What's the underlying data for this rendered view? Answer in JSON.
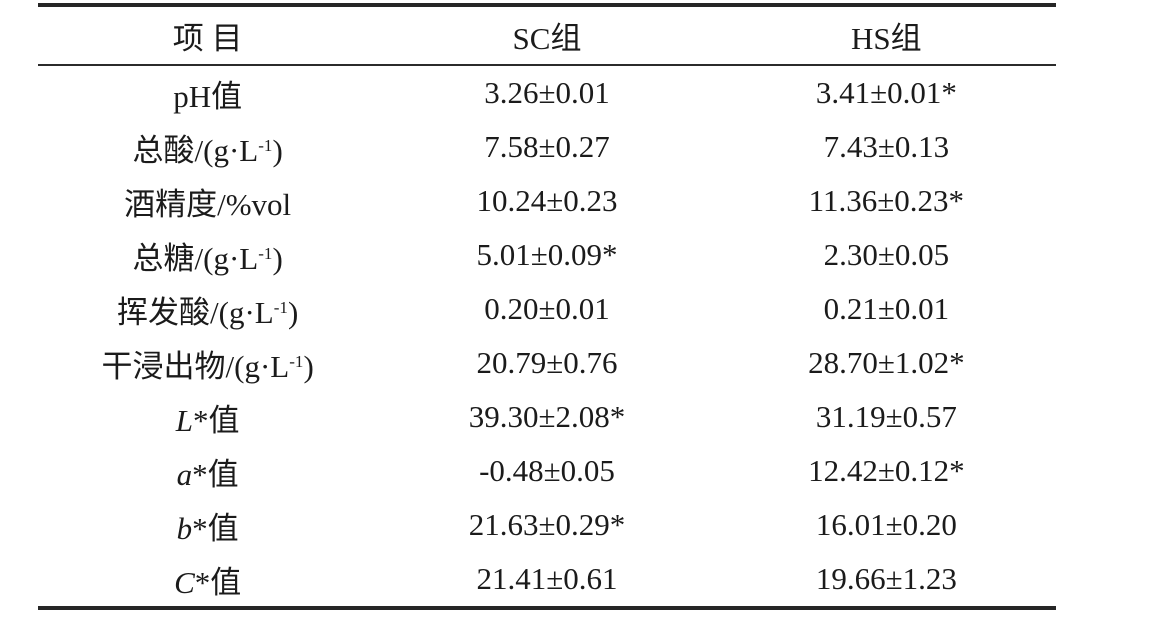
{
  "page": {
    "background_color": "#ffffff",
    "text_color": "#1b1b1b",
    "rule_color": "#262626"
  },
  "table": {
    "headers": {
      "item": "项 目",
      "sc": "SC组",
      "hs": "HS组"
    },
    "rows": [
      {
        "label_pre": "pH值",
        "sc": "3.26±0.01",
        "hs": "3.41±0.01*"
      },
      {
        "label_pre": "总酸/(g·L",
        "label_sup": "-1",
        "label_post": ")",
        "sc": "7.58±0.27",
        "hs": "7.43±0.13"
      },
      {
        "label_pre": "酒精度/%vol",
        "sc": "10.24±0.23",
        "hs": "11.36±0.23*"
      },
      {
        "label_pre": "总糖/(g·L",
        "label_sup": "-1",
        "label_post": ")",
        "sc": "5.01±0.09*",
        "hs": "2.30±0.05"
      },
      {
        "label_pre": "挥发酸/(g·L",
        "label_sup": "-1",
        "label_post": ")",
        "sc": "0.20±0.01",
        "hs": "0.21±0.01"
      },
      {
        "label_pre": "干浸出物/(g·L",
        "label_sup": "-1",
        "label_post": ")",
        "sc": "20.79±0.76",
        "hs": "28.70±1.02*"
      },
      {
        "label_italic": "L",
        "label_post": "*值",
        "sc": "39.30±2.08*",
        "hs": "31.19±0.57"
      },
      {
        "label_italic": "a",
        "label_post": "*值",
        "sc": "-0.48±0.05",
        "hs": "12.42±0.12*"
      },
      {
        "label_italic": "b",
        "label_post": "*值",
        "sc": "21.63±0.29*",
        "hs": "16.01±0.20"
      },
      {
        "label_italic": "C",
        "label_post": "*值",
        "sc": "21.41±0.61",
        "hs": "19.66±1.23"
      }
    ]
  }
}
